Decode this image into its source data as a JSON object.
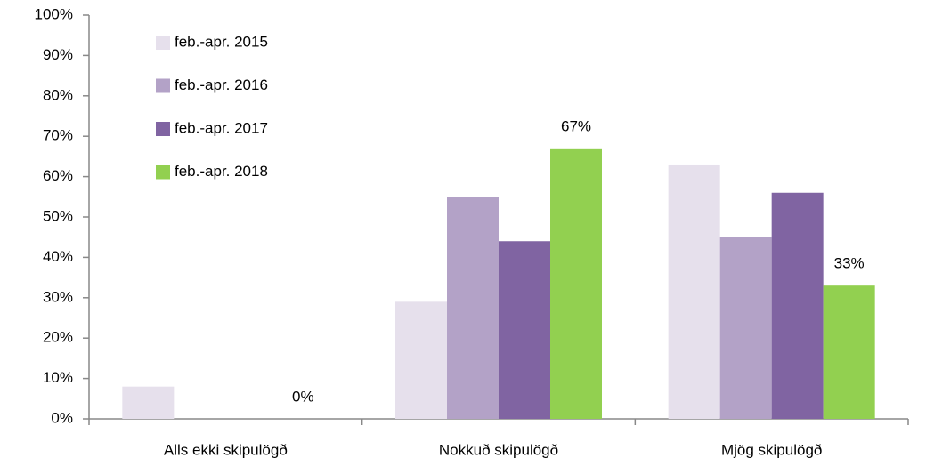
{
  "chart_data": {
    "type": "bar",
    "categories": [
      "Alls ekki skipulögð",
      "Nokkuð skipulögð",
      "Mjög skipulögð"
    ],
    "series": [
      {
        "name": "feb.-apr. 2015",
        "color": "#e6e0ec",
        "values": [
          8,
          29,
          63
        ]
      },
      {
        "name": "feb.-apr. 2016",
        "color": "#b3a2c7",
        "values": [
          0,
          55,
          45
        ]
      },
      {
        "name": "feb.-apr. 2017",
        "color": "#8064a2",
        "values": [
          0,
          44,
          56
        ]
      },
      {
        "name": "feb.-apr. 2018",
        "color": "#92d050",
        "values": [
          0,
          67,
          33
        ],
        "value_labels": [
          "0%",
          "67%",
          "33%"
        ]
      }
    ],
    "ylim": [
      0,
      100
    ],
    "yticks": [
      {
        "value": 0,
        "label": "0%"
      },
      {
        "value": 10,
        "label": "10%"
      },
      {
        "value": 20,
        "label": "20%"
      },
      {
        "value": 30,
        "label": "30%"
      },
      {
        "value": 40,
        "label": "40%"
      },
      {
        "value": 50,
        "label": "50%"
      },
      {
        "value": 60,
        "label": "60%"
      },
      {
        "value": 70,
        "label": "70%"
      },
      {
        "value": 80,
        "label": "80%"
      },
      {
        "value": 90,
        "label": "90%"
      },
      {
        "value": 100,
        "label": "100%"
      }
    ],
    "legend": "upper left",
    "grid": false
  }
}
